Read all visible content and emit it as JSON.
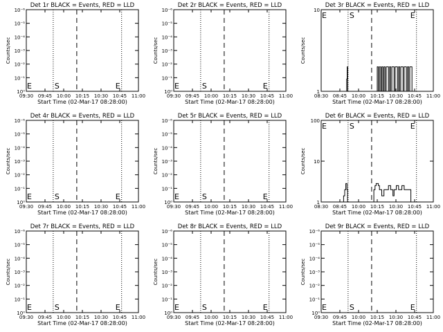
{
  "figure": {
    "x_title": "Start Time (02-Mar-17 08:28:00)",
    "y_title": "Counts/sec",
    "colors": {
      "background": "#ffffff",
      "axes": "#000000",
      "events": "#000000",
      "lld": "#ff0000"
    }
  },
  "chart_data": [
    {
      "type": "line",
      "title": "Det 1r BLACK = Events, RED = LLD",
      "xlabel": "Start Time (02-Mar-17 08:28:00)",
      "ylabel": "Counts/sec",
      "y_scale": "log",
      "x_ticks": [
        "09:30",
        "09:45",
        "10:00",
        "10:15",
        "10:30",
        "10:45",
        "11:00"
      ],
      "y_ticks": [
        "10⁰",
        "10⁻¹",
        "10⁻²",
        "10⁻³",
        "10⁻⁴",
        "10⁻⁵",
        "10⁻⁶"
      ],
      "markers": {
        "start": "S",
        "end": "E",
        "left_end": "E"
      },
      "xlim": [
        0,
        100
      ],
      "ylim": [
        0,
        6
      ],
      "vlines": {
        "dotted": [
          24,
          85
        ],
        "dashed": [
          45
        ]
      },
      "series": []
    },
    {
      "type": "line",
      "title": "Det 2r BLACK = Events, RED = LLD",
      "xlabel": "Start Time (02-Mar-17 08:28:00)",
      "ylabel": "Counts/sec",
      "y_scale": "log",
      "x_ticks": [
        "09:30",
        "09:45",
        "10:00",
        "10:15",
        "10:30",
        "10:45",
        "11:00"
      ],
      "y_ticks": [
        "10⁰",
        "10⁻¹",
        "10⁻²",
        "10⁻³",
        "10⁻⁴",
        "10⁻⁵",
        "10⁻⁶"
      ],
      "markers": {
        "start": "S",
        "end": "E",
        "left_end": "E"
      },
      "xlim": [
        0,
        100
      ],
      "ylim": [
        0,
        6
      ],
      "vlines": {
        "dotted": [
          24,
          85
        ],
        "dashed": [
          45
        ]
      },
      "series": []
    },
    {
      "type": "line",
      "title": "Det 3r BLACK = Events, RED = LLD",
      "xlabel": "Start Time (02-Mar-17 08:28:00)",
      "ylabel": "Counts/sec",
      "y_scale": "log",
      "x_ticks": [
        "08:30",
        "08:45",
        "10:00",
        "10:15",
        "10:30",
        "10:45",
        "11:00"
      ],
      "y_ticks": [
        "1",
        "10"
      ],
      "markers": {
        "start": "S",
        "end": "E",
        "left_end": "E"
      },
      "xlim": [
        0,
        100
      ],
      "ylim": [
        0,
        1
      ],
      "vlines": {
        "dotted": [
          24,
          85
        ],
        "dashed": [
          45
        ]
      },
      "series": [
        {
          "color": "#000000",
          "points": [
            [
              0,
              0
            ],
            [
              22.8,
              0
            ],
            [
              22.8,
              0.15
            ],
            [
              23.2,
              0.15
            ],
            [
              23.2,
              0.3
            ],
            [
              23.6,
              0.3
            ],
            [
              23.6,
              0
            ],
            [
              50,
              0
            ],
            [
              50,
              0.3
            ],
            [
              51,
              0.3
            ],
            [
              51,
              0
            ],
            [
              52,
              0
            ],
            [
              52,
              0.3
            ],
            [
              53,
              0.3
            ],
            [
              53,
              0
            ],
            [
              54,
              0
            ],
            [
              54,
              0.3
            ],
            [
              55,
              0.3
            ],
            [
              55,
              0
            ],
            [
              56,
              0
            ],
            [
              56,
              0.3
            ],
            [
              57,
              0.3
            ],
            [
              57,
              0
            ],
            [
              58,
              0
            ],
            [
              58,
              0.3
            ],
            [
              60,
              0.3
            ],
            [
              60,
              0
            ],
            [
              61,
              0
            ],
            [
              61,
              0.3
            ],
            [
              62,
              0.3
            ],
            [
              62,
              0
            ],
            [
              63,
              0
            ],
            [
              63,
              0.3
            ],
            [
              65,
              0.3
            ],
            [
              65,
              0
            ],
            [
              66,
              0
            ],
            [
              66,
              0.3
            ],
            [
              68,
              0.3
            ],
            [
              68,
              0
            ],
            [
              69,
              0
            ],
            [
              69,
              0.3
            ],
            [
              70,
              0.3
            ],
            [
              70,
              0
            ],
            [
              71,
              0
            ],
            [
              71,
              0.3
            ],
            [
              73,
              0.3
            ],
            [
              73,
              0
            ],
            [
              74,
              0
            ],
            [
              74,
              0.3
            ],
            [
              76,
              0.3
            ],
            [
              76,
              0
            ],
            [
              77,
              0
            ],
            [
              77,
              0.3
            ],
            [
              78,
              0.3
            ],
            [
              78,
              0
            ],
            [
              79,
              0
            ],
            [
              79,
              0.3
            ],
            [
              81,
              0.3
            ],
            [
              81,
              0
            ],
            [
              100,
              0
            ]
          ]
        }
      ]
    },
    {
      "type": "line",
      "title": "Det 4r BLACK = Events, RED = LLD",
      "xlabel": "Start Time (02-Mar-17 08:28:00)",
      "ylabel": "Counts/sec",
      "y_scale": "log",
      "x_ticks": [
        "09:30",
        "09:45",
        "10:00",
        "10:15",
        "10:30",
        "10:45",
        "11:00"
      ],
      "y_ticks": [
        "10⁰",
        "10⁻¹",
        "10⁻²",
        "10⁻³",
        "10⁻⁴",
        "10⁻⁵",
        "10⁻⁶"
      ],
      "markers": {
        "start": "S",
        "end": "E",
        "left_end": "E"
      },
      "xlim": [
        0,
        100
      ],
      "ylim": [
        0,
        6
      ],
      "vlines": {
        "dotted": [
          24,
          85
        ],
        "dashed": [
          45
        ]
      },
      "series": []
    },
    {
      "type": "line",
      "title": "Det 5r BLACK = Events, RED = LLD",
      "xlabel": "Start Time (02-Mar-17 08:28:00)",
      "ylabel": "Counts/sec",
      "y_scale": "log",
      "x_ticks": [
        "09:30",
        "09:45",
        "10:00",
        "10:15",
        "10:30",
        "10:45",
        "11:00"
      ],
      "y_ticks": [
        "10⁰",
        "10⁻¹",
        "10⁻²",
        "10⁻³",
        "10⁻⁴",
        "10⁻⁵",
        "10⁻⁶"
      ],
      "markers": {
        "start": "S",
        "end": "E",
        "left_end": "E"
      },
      "xlim": [
        0,
        100
      ],
      "ylim": [
        0,
        6
      ],
      "vlines": {
        "dotted": [
          24,
          85
        ],
        "dashed": [
          45
        ]
      },
      "series": []
    },
    {
      "type": "line",
      "title": "Det 6r BLACK = Events, RED = LLD",
      "xlabel": "Start Time (02-Mar-17 08:28:00)",
      "ylabel": "Counts/sec",
      "y_scale": "log",
      "x_ticks": [
        "08:30",
        "08:45",
        "10:00",
        "10:15",
        "10:30",
        "10:45",
        "11:00"
      ],
      "y_ticks": [
        "1",
        "10",
        "100"
      ],
      "markers": {
        "start": "S",
        "end": "E",
        "left_end": "E"
      },
      "xlim": [
        0,
        100
      ],
      "ylim": [
        0,
        2
      ],
      "vlines": {
        "dotted": [
          24,
          85
        ],
        "dashed": [
          45
        ]
      },
      "series": [
        {
          "color": "#000000",
          "points": [
            [
              0,
              0
            ],
            [
              20,
              0
            ],
            [
              20,
              0.15
            ],
            [
              21,
              0.15
            ],
            [
              21,
              0.3
            ],
            [
              22,
              0.3
            ],
            [
              22,
              0.45
            ],
            [
              23,
              0.45
            ],
            [
              23,
              0.3
            ],
            [
              23.5,
              0.3
            ],
            [
              23.5,
              0
            ],
            [
              47,
              0
            ],
            [
              47,
              0.3
            ],
            [
              48,
              0.3
            ],
            [
              48,
              0.4
            ],
            [
              49,
              0.4
            ],
            [
              49,
              0.45
            ],
            [
              51,
              0.45
            ],
            [
              51,
              0.4
            ],
            [
              52,
              0.4
            ],
            [
              52,
              0.3
            ],
            [
              54,
              0.3
            ],
            [
              54,
              0.15
            ],
            [
              56,
              0.15
            ],
            [
              56,
              0.3
            ],
            [
              60,
              0.3
            ],
            [
              60,
              0.4
            ],
            [
              62,
              0.4
            ],
            [
              62,
              0.3
            ],
            [
              64,
              0.3
            ],
            [
              64,
              0.15
            ],
            [
              65,
              0.15
            ],
            [
              65,
              0.3
            ],
            [
              67,
              0.3
            ],
            [
              67,
              0.4
            ],
            [
              69,
              0.4
            ],
            [
              69,
              0.3
            ],
            [
              72,
              0.3
            ],
            [
              72,
              0.4
            ],
            [
              74,
              0.4
            ],
            [
              74,
              0.3
            ],
            [
              80,
              0.3
            ],
            [
              80,
              0
            ],
            [
              100,
              0
            ]
          ]
        }
      ]
    },
    {
      "type": "line",
      "title": "Det 7r BLACK = Events, RED = LLD",
      "xlabel": "Start Time (02-Mar-17 08:28:00)",
      "ylabel": "Counts/sec",
      "y_scale": "log",
      "x_ticks": [
        "09:30",
        "09:45",
        "10:00",
        "10:15",
        "10:30",
        "10:45",
        "11:00"
      ],
      "y_ticks": [
        "10⁰",
        "10⁻¹",
        "10⁻²",
        "10⁻³",
        "10⁻⁴",
        "10⁻⁵",
        "10⁻⁶"
      ],
      "markers": {
        "start": "S",
        "end": "E",
        "left_end": "E"
      },
      "xlim": [
        0,
        100
      ],
      "ylim": [
        0,
        6
      ],
      "vlines": {
        "dotted": [
          24,
          85
        ],
        "dashed": [
          45
        ]
      },
      "series": []
    },
    {
      "type": "line",
      "title": "Det 8r BLACK = Events, RED = LLD",
      "xlabel": "Start Time (02-Mar-17 08:28:00)",
      "ylabel": "Counts/sec",
      "y_scale": "log",
      "x_ticks": [
        "09:30",
        "09:45",
        "10:00",
        "10:15",
        "10:30",
        "10:45",
        "11:00"
      ],
      "y_ticks": [
        "10⁰",
        "10⁻¹",
        "10⁻²",
        "10⁻³",
        "10⁻⁴",
        "10⁻⁵",
        "10⁻⁶"
      ],
      "markers": {
        "start": "S",
        "end": "E",
        "left_end": "E"
      },
      "xlim": [
        0,
        100
      ],
      "ylim": [
        0,
        6
      ],
      "vlines": {
        "dotted": [
          24,
          85
        ],
        "dashed": [
          45
        ]
      },
      "series": []
    },
    {
      "type": "line",
      "title": "Det 9r BLACK = Events, RED = LLD",
      "xlabel": "Start Time (02-Mar-17 08:28:00)",
      "ylabel": "Counts/sec",
      "y_scale": "log",
      "x_ticks": [
        "09:30",
        "09:45",
        "10:00",
        "10:15",
        "10:30",
        "10:45",
        "11:00"
      ],
      "y_ticks": [
        "10⁰",
        "10⁻¹",
        "10⁻²",
        "10⁻³",
        "10⁻⁴",
        "10⁻⁵",
        "10⁻⁶"
      ],
      "markers": {
        "start": "S",
        "end": "E",
        "left_end": "E"
      },
      "xlim": [
        0,
        100
      ],
      "ylim": [
        0,
        6
      ],
      "vlines": {
        "dotted": [
          24,
          85
        ],
        "dashed": [
          45
        ]
      },
      "series": []
    }
  ]
}
